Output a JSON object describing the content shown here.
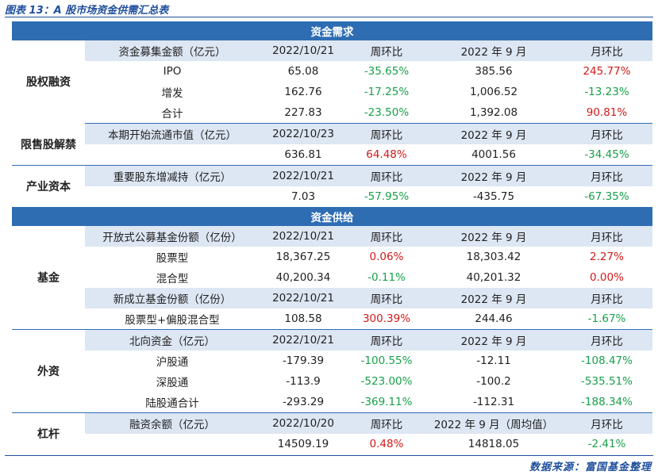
{
  "caption": "图表 13：A 股市场资金供需汇总表",
  "footer": "数据来源：富国基金整理",
  "demand": {
    "title": "资金需求",
    "equity": {
      "group": "股权融资",
      "header": [
        "资金募集金额（亿元）",
        "2022/10/21",
        "周环比",
        "2022 年 9 月",
        "月环比"
      ],
      "rows": [
        [
          "IPO",
          "65.08",
          "-35.65%",
          "385.56",
          "245.77%"
        ],
        [
          "增发",
          "162.76",
          "-17.25%",
          "1,006.52",
          "-13.23%"
        ],
        [
          "合计",
          "227.83",
          "-23.50%",
          "1,392.08",
          "90.81%"
        ]
      ]
    },
    "lockup": {
      "group": "限售股解禁",
      "header": [
        "本期开始流通市值（亿元）",
        "2022/10/23",
        "周环比",
        "2022 年 9 月",
        "月环比"
      ],
      "row": [
        "",
        "636.81",
        "64.48%",
        "4001.56",
        "-34.45%"
      ]
    },
    "industry": {
      "group": "产业资本",
      "header": [
        "重要股东增减持（亿元）",
        "2022/10/21",
        "周环比",
        "2022 年 9 月",
        "月环比"
      ],
      "row": [
        "",
        "7.03",
        "-57.95%",
        "-435.75",
        "-67.35%"
      ]
    }
  },
  "supply": {
    "title": "资金供给",
    "fund": {
      "group": "基金",
      "header1": [
        "开放式公募基金份额（亿份）",
        "2022/10/21",
        "周环比",
        "2022 年 9 月",
        "月环比"
      ],
      "rows1": [
        [
          "股票型",
          "18,367.25",
          "0.06%",
          "18,303.42",
          "2.27%"
        ],
        [
          "混合型",
          "40,200.34",
          "-0.11%",
          "40,201.32",
          "0.00%"
        ]
      ],
      "header2": [
        "新成立基金份额（亿份）",
        "2022/10/21",
        "周环比",
        "2022 年 9 月",
        "月环比"
      ],
      "row2": [
        "股票型+偏股混合型",
        "108.58",
        "300.39%",
        "244.46",
        "-1.67%"
      ]
    },
    "foreign": {
      "group": "外资",
      "header": [
        "北向资金（亿元）",
        "2022/10/21",
        "周环比",
        "2022 年 9 月",
        "月环比"
      ],
      "rows": [
        [
          "沪股通",
          "-179.39",
          "-100.55%",
          "-12.11",
          "-108.47%"
        ],
        [
          "深股通",
          "-113.9",
          "-523.00%",
          "-100.2",
          "-535.51%"
        ],
        [
          "陆股通合计",
          "-293.29",
          "-369.11%",
          "-112.31",
          "-188.34%"
        ]
      ]
    },
    "leverage": {
      "group": "杠杆",
      "header": [
        "融资余额（亿元）",
        "2022/10/20",
        "周环比",
        "2022 年 9 月（周均值）",
        "月环比"
      ],
      "row": [
        "",
        "14509.19",
        "0.48%",
        "14818.05",
        "-2.41%"
      ]
    }
  }
}
